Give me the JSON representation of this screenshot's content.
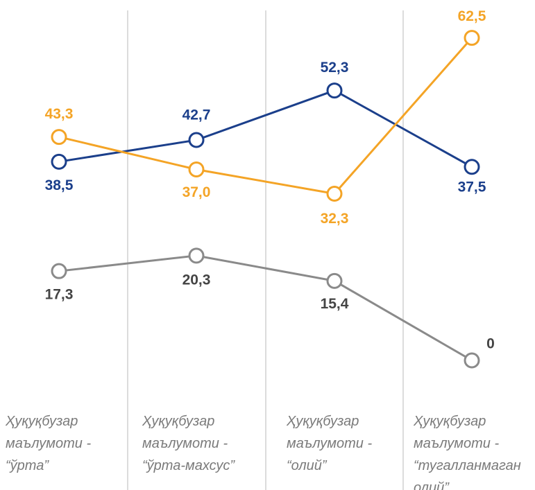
{
  "chart_data": {
    "type": "line",
    "categories": [
      "Ҳуқуқбузар маълумоти - “ўрта”",
      "Ҳуқуқбузар маълумоти - “ўрта-махсус”",
      "Ҳуқуқбузар маълумоти - “олий”",
      "Ҳуқуқбузар маълумоти - “тугалланмаган олий”"
    ],
    "series": [
      {
        "color": "#1b3f8b",
        "values": [
          38.5,
          42.7,
          52.3,
          37.5
        ],
        "value_labels": [
          "38,5",
          "42,7",
          "52,3",
          "37,5"
        ]
      },
      {
        "color": "#f4a426",
        "values": [
          43.3,
          37.0,
          32.3,
          62.5
        ],
        "value_labels": [
          "43,3",
          "37,0",
          "32,3",
          "62,5"
        ]
      },
      {
        "color": "#8a8a8a",
        "values": [
          17.3,
          20.3,
          15.4,
          0
        ],
        "value_labels": [
          "17,3",
          "20,3",
          "15,4",
          "0"
        ]
      }
    ],
    "ylim": [
      0,
      65
    ]
  }
}
